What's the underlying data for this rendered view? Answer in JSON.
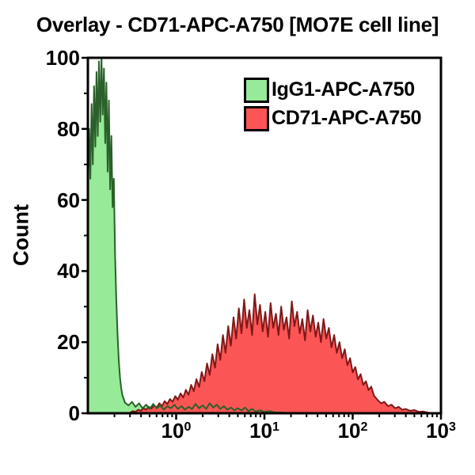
{
  "title": "Overlay - CD71-APC-A750 [MO7E cell line]",
  "chart_data": {
    "type": "area",
    "subtype": "flow-cytometry-histogram-overlay",
    "title": "Overlay - CD71-APC-A750 [MO7E cell line]",
    "xlabel": "",
    "ylabel": "Count",
    "x_scale": "log",
    "x_range_log10": [
      -1,
      3
    ],
    "ylim": [
      0,
      100
    ],
    "y_ticks": [
      0,
      20,
      40,
      60,
      80,
      100
    ],
    "y_minor_ticks": [
      10,
      30,
      50,
      70,
      90
    ],
    "x_ticks": [
      {
        "u": 0,
        "base": "10",
        "exp": "0"
      },
      {
        "u": 1,
        "base": "10",
        "exp": "1"
      },
      {
        "u": 2,
        "base": "10",
        "exp": "2"
      },
      {
        "u": 3,
        "base": "10",
        "exp": "3"
      }
    ],
    "grid": false,
    "legend_position": "top-right",
    "axis_color": "#000000",
    "background_color": "#ffffff",
    "series": [
      {
        "key": "igg1",
        "name": "IgG1-APC-A750",
        "fill": "#97EA97",
        "stroke": "#2A602A",
        "points_log10x_y": [
          [
            -1.0,
            63
          ],
          [
            -0.986,
            80
          ],
          [
            -0.972,
            66
          ],
          [
            -0.958,
            87
          ],
          [
            -0.944,
            70
          ],
          [
            -0.93,
            92
          ],
          [
            -0.916,
            75
          ],
          [
            -0.902,
            96
          ],
          [
            -0.888,
            78
          ],
          [
            -0.874,
            99
          ],
          [
            -0.86,
            82
          ],
          [
            -0.846,
            100
          ],
          [
            -0.832,
            84
          ],
          [
            -0.818,
            97
          ],
          [
            -0.804,
            76
          ],
          [
            -0.79,
            93
          ],
          [
            -0.776,
            68
          ],
          [
            -0.762,
            88
          ],
          [
            -0.748,
            63
          ],
          [
            -0.734,
            78
          ],
          [
            -0.72,
            58
          ],
          [
            -0.706,
            66
          ],
          [
            -0.692,
            45
          ],
          [
            -0.678,
            32
          ],
          [
            -0.664,
            22
          ],
          [
            -0.65,
            15
          ],
          [
            -0.636,
            10
          ],
          [
            -0.622,
            7
          ],
          [
            -0.608,
            5
          ],
          [
            -0.594,
            4
          ],
          [
            -0.58,
            3
          ],
          [
            -0.54,
            2.2
          ],
          [
            -0.5,
            3.2
          ],
          [
            -0.46,
            1.8
          ],
          [
            -0.42,
            2.8
          ],
          [
            -0.38,
            1.4
          ],
          [
            -0.34,
            2.4
          ],
          [
            -0.3,
            1.2
          ],
          [
            -0.26,
            2.6
          ],
          [
            -0.22,
            1.4
          ],
          [
            -0.18,
            2.2
          ],
          [
            -0.14,
            1.0
          ],
          [
            -0.1,
            2.0
          ],
          [
            -0.06,
            1.4
          ],
          [
            -0.02,
            2.4
          ],
          [
            0.02,
            1.2
          ],
          [
            0.06,
            2.0
          ],
          [
            0.1,
            1.0
          ],
          [
            0.14,
            1.8
          ],
          [
            0.18,
            1.2
          ],
          [
            0.22,
            2.6
          ],
          [
            0.26,
            1.4
          ],
          [
            0.3,
            2.2
          ],
          [
            0.34,
            1.2
          ],
          [
            0.38,
            2.8
          ],
          [
            0.42,
            1.6
          ],
          [
            0.46,
            2.4
          ],
          [
            0.5,
            1.2
          ],
          [
            0.54,
            2.0
          ],
          [
            0.58,
            1.0
          ],
          [
            0.62,
            1.6
          ],
          [
            0.66,
            0.8
          ],
          [
            0.7,
            1.4
          ],
          [
            0.74,
            0.8
          ],
          [
            0.78,
            1.6
          ],
          [
            0.82,
            0.6
          ],
          [
            0.86,
            1.2
          ],
          [
            0.9,
            0.5
          ],
          [
            0.95,
            0.8
          ],
          [
            1.0,
            0.4
          ],
          [
            1.06,
            0.6
          ],
          [
            1.12,
            0.3
          ],
          [
            1.2,
            0.2
          ],
          [
            1.3,
            0.1
          ],
          [
            1.4,
            0
          ]
        ]
      },
      {
        "key": "cd71",
        "name": "CD71-APC-A750",
        "fill": "#FC5555",
        "stroke": "#801818",
        "points_log10x_y": [
          [
            -0.52,
            0.2
          ],
          [
            -0.49,
            0.6
          ],
          [
            -0.46,
            0.4
          ],
          [
            -0.43,
            1.0
          ],
          [
            -0.4,
            0.7
          ],
          [
            -0.37,
            1.4
          ],
          [
            -0.34,
            1.0
          ],
          [
            -0.31,
            1.8
          ],
          [
            -0.28,
            1.3
          ],
          [
            -0.25,
            2.2
          ],
          [
            -0.22,
            1.6
          ],
          [
            -0.19,
            2.8
          ],
          [
            -0.16,
            2.0
          ],
          [
            -0.13,
            3.4
          ],
          [
            -0.1,
            2.6
          ],
          [
            -0.07,
            4.0
          ],
          [
            -0.04,
            3.2
          ],
          [
            -0.01,
            4.8
          ],
          [
            0.02,
            3.8
          ],
          [
            0.05,
            5.6
          ],
          [
            0.08,
            4.4
          ],
          [
            0.11,
            6.6
          ],
          [
            0.14,
            5.2
          ],
          [
            0.17,
            8.0
          ],
          [
            0.2,
            6.2
          ],
          [
            0.23,
            9.6
          ],
          [
            0.26,
            7.4
          ],
          [
            0.29,
            11.6
          ],
          [
            0.32,
            9.0
          ],
          [
            0.35,
            14.0
          ],
          [
            0.38,
            10.8
          ],
          [
            0.41,
            16.6
          ],
          [
            0.44,
            12.8
          ],
          [
            0.47,
            19.4
          ],
          [
            0.5,
            15.0
          ],
          [
            0.53,
            22.0
          ],
          [
            0.56,
            17.0
          ],
          [
            0.59,
            24.5
          ],
          [
            0.62,
            19.0
          ],
          [
            0.65,
            27.0
          ],
          [
            0.68,
            21.0
          ],
          [
            0.71,
            29.5
          ],
          [
            0.74,
            22.5
          ],
          [
            0.77,
            32.0
          ],
          [
            0.8,
            24.0
          ],
          [
            0.83,
            29.0
          ],
          [
            0.86,
            22.0
          ],
          [
            0.89,
            33.5
          ],
          [
            0.92,
            25.0
          ],
          [
            0.95,
            30.5
          ],
          [
            0.98,
            23.0
          ],
          [
            1.01,
            28.5
          ],
          [
            1.04,
            21.5
          ],
          [
            1.07,
            31.0
          ],
          [
            1.1,
            24.0
          ],
          [
            1.13,
            28.0
          ],
          [
            1.16,
            22.0
          ],
          [
            1.19,
            30.0
          ],
          [
            1.22,
            23.5
          ],
          [
            1.25,
            27.0
          ],
          [
            1.28,
            21.0
          ],
          [
            1.31,
            31.5
          ],
          [
            1.34,
            24.5
          ],
          [
            1.37,
            28.5
          ],
          [
            1.4,
            22.5
          ],
          [
            1.43,
            26.5
          ],
          [
            1.46,
            20.5
          ],
          [
            1.49,
            29.0
          ],
          [
            1.52,
            23.0
          ],
          [
            1.55,
            27.5
          ],
          [
            1.58,
            21.5
          ],
          [
            1.61,
            25.5
          ],
          [
            1.64,
            20.0
          ],
          [
            1.67,
            26.5
          ],
          [
            1.7,
            21.0
          ],
          [
            1.73,
            24.0
          ],
          [
            1.76,
            18.5
          ],
          [
            1.79,
            22.0
          ],
          [
            1.82,
            17.0
          ],
          [
            1.85,
            20.0
          ],
          [
            1.88,
            15.5
          ],
          [
            1.91,
            18.0
          ],
          [
            1.94,
            13.5
          ],
          [
            1.97,
            15.5
          ],
          [
            2.0,
            11.5
          ],
          [
            2.03,
            13.0
          ],
          [
            2.06,
            9.5
          ],
          [
            2.09,
            11.0
          ],
          [
            2.12,
            8.0
          ],
          [
            2.15,
            9.0
          ],
          [
            2.18,
            6.5
          ],
          [
            2.21,
            7.5
          ],
          [
            2.24,
            5.0
          ],
          [
            2.28,
            3.8
          ],
          [
            2.32,
            2.8
          ],
          [
            2.36,
            3.2
          ],
          [
            2.4,
            2.0
          ],
          [
            2.44,
            2.4
          ],
          [
            2.48,
            1.4
          ],
          [
            2.52,
            1.8
          ],
          [
            2.56,
            1.0
          ],
          [
            2.6,
            1.2
          ],
          [
            2.65,
            0.7
          ],
          [
            2.7,
            0.9
          ],
          [
            2.75,
            0.4
          ],
          [
            2.8,
            0.5
          ],
          [
            2.85,
            0.2
          ],
          [
            2.9,
            0
          ]
        ]
      }
    ]
  }
}
